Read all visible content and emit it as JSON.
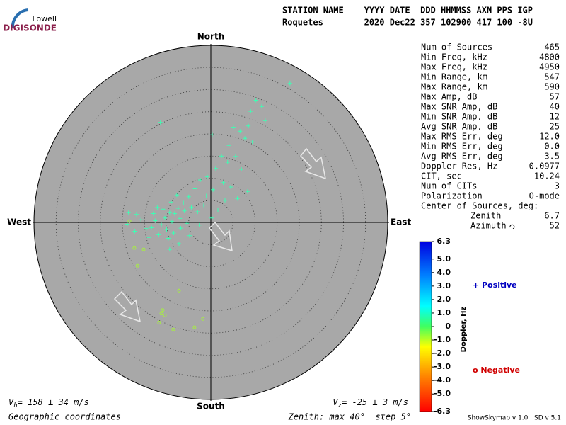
{
  "logo": {
    "top": "Lowell",
    "bottom": "DIGISONDE"
  },
  "header": {
    "line1": "STATION NAME    YYYY DATE  DDD HHMMSS AXN PPS IGP",
    "line2": "Roquetes        2020 Dec22 357 102900 417 100 -8U"
  },
  "stats": [
    [
      "Num of Sources",
      "465"
    ],
    [
      "Min Freq, kHz",
      "4800"
    ],
    [
      "Max Freq, kHz",
      "4950"
    ],
    [
      "Min Range, km",
      "547"
    ],
    [
      "Max Range, km",
      "590"
    ],
    [
      "Max Amp, dB",
      "57"
    ],
    [
      "Max SNR Amp, dB",
      "40"
    ],
    [
      "Min SNR Amp, dB",
      "12"
    ],
    [
      "Avg SNR Amp, dB",
      "25"
    ],
    [
      "Max RMS Err, deg",
      "12.0"
    ],
    [
      "Min RMS Err, deg",
      "0.0"
    ],
    [
      "Avg RMS Err, deg",
      "3.5"
    ],
    [
      "Doppler Res, Hz",
      "0.0977"
    ],
    [
      "CIT, sec",
      "10.24"
    ],
    [
      "Num of CITs",
      "3"
    ],
    [
      "Polarization",
      "O-mode"
    ]
  ],
  "center": {
    "title": "Center of Sources, deg:",
    "rows": [
      [
        "Zenith",
        "6.7"
      ],
      [
        "Azimuth",
        "52"
      ]
    ]
  },
  "skymap": {
    "directions": {
      "north": "North",
      "south": "South",
      "east": "East",
      "west": "West"
    },
    "max_zenith": 40,
    "step": 5,
    "positive": {
      "color": "#3cffb4",
      "points": [
        [
          17.9,
          31.4
        ],
        [
          11.5,
          26.2
        ],
        [
          10.2,
          27.6
        ],
        [
          9.0,
          25.1
        ],
        [
          12.3,
          23.0
        ],
        [
          -11.4,
          22.6
        ],
        [
          0.3,
          19.8
        ],
        [
          5.1,
          21.5
        ],
        [
          6.6,
          20.6
        ],
        [
          7.7,
          19.0
        ],
        [
          9.4,
          18.2
        ],
        [
          8.5,
          21.8
        ],
        [
          4.1,
          17.4
        ],
        [
          2.4,
          15.0
        ],
        [
          3.8,
          13.6
        ],
        [
          5.6,
          14.9
        ],
        [
          6.9,
          12.0
        ],
        [
          1.1,
          12.2
        ],
        [
          -0.8,
          10.3
        ],
        [
          -2.4,
          9.6
        ],
        [
          2.8,
          9.0
        ],
        [
          0.5,
          7.4
        ],
        [
          4.5,
          8.0
        ],
        [
          8.3,
          7.0
        ],
        [
          6.0,
          5.4
        ],
        [
          3.2,
          5.0
        ],
        [
          -1.0,
          6.0
        ],
        [
          -3.6,
          7.6
        ],
        [
          -5.0,
          5.8
        ],
        [
          -6.2,
          4.4
        ],
        [
          -7.4,
          3.2
        ],
        [
          -8.2,
          2.0
        ],
        [
          -9.3,
          2.2
        ],
        [
          -10.4,
          1.0
        ],
        [
          -8.8,
          0.2
        ],
        [
          -7.0,
          0.9
        ],
        [
          -6.0,
          2.6
        ],
        [
          -4.4,
          3.4
        ],
        [
          -3.0,
          2.4
        ],
        [
          -1.6,
          3.9
        ],
        [
          -11.2,
          -0.5
        ],
        [
          -12.6,
          0.4
        ],
        [
          -13.4,
          -1.2
        ],
        [
          -10.0,
          -1.6
        ],
        [
          -8.4,
          -2.4
        ],
        [
          -6.8,
          -1.3
        ],
        [
          -5.4,
          -0.2
        ],
        [
          -9.6,
          -3.6
        ],
        [
          -11.8,
          -2.8
        ],
        [
          -14.6,
          -1.4
        ],
        [
          -15.8,
          0.6
        ],
        [
          -18.6,
          2.2
        ],
        [
          -18.9,
          -0.4
        ],
        [
          -16.8,
          1.8
        ],
        [
          -12.1,
          3.4
        ],
        [
          -9.0,
          4.6
        ],
        [
          -7.7,
          6.2
        ],
        [
          -9.3,
          -6.1
        ],
        [
          -7.2,
          -4.8
        ],
        [
          -4.8,
          -3.0
        ],
        [
          -2.6,
          -0.6
        ],
        [
          0.2,
          1.0
        ],
        [
          1.6,
          2.8
        ],
        [
          -13.0,
          2.0
        ],
        [
          -10.8,
          3.0
        ],
        [
          -14.0,
          -3.4
        ],
        [
          -17.2,
          -2.0
        ]
      ]
    },
    "negative": {
      "color": "#a6f040",
      "points": [
        [
          -17.3,
          -5.8
        ],
        [
          -15.2,
          -6.1
        ],
        [
          -16.6,
          -9.8
        ],
        [
          -7.2,
          -15.4
        ],
        [
          -10.9,
          -19.8
        ],
        [
          -11.2,
          -20.6
        ],
        [
          -11.7,
          -22.6
        ],
        [
          -8.5,
          -24.2
        ],
        [
          -3.7,
          -23.7
        ],
        [
          -1.8,
          -21.8
        ],
        [
          -10.4,
          -21.0
        ],
        [
          -18.4,
          0.3
        ]
      ]
    }
  },
  "legend": {
    "positive": "+ Positive",
    "negative": "o Negative"
  },
  "colorbar": {
    "label": "Doppler, Hz",
    "lim": [
      -6.3,
      6.3
    ],
    "ticks": [
      6.3,
      {
        "value": 5,
        "label": "5.0"
      },
      {
        "value": 4,
        "label": "4.0"
      },
      {
        "value": 3,
        "label": "3.0"
      },
      {
        "value": 2,
        "label": "2.0"
      },
      {
        "value": 1,
        "label": "1.0"
      },
      0,
      {
        "value": -1,
        "label": "-1.0"
      },
      {
        "value": -2,
        "label": "-2.0"
      },
      {
        "value": -3,
        "label": "-3.0"
      },
      {
        "value": -4,
        "label": "-4.0"
      },
      {
        "value": -5,
        "label": "-5.0"
      },
      -6.3
    ]
  },
  "footer": {
    "vh": {
      "symbol": "V",
      "sub": "h",
      "text": "= 158 ± 34 m/s"
    },
    "vz": {
      "symbol": "V",
      "sub": "z",
      "text": "= -25 ± 3 m/s"
    },
    "coords": "Geographic coordinates",
    "zenith": "Zenith: max 40°  step 5°",
    "version": "ShowSkymap v 1.0   SD v 5.1"
  }
}
